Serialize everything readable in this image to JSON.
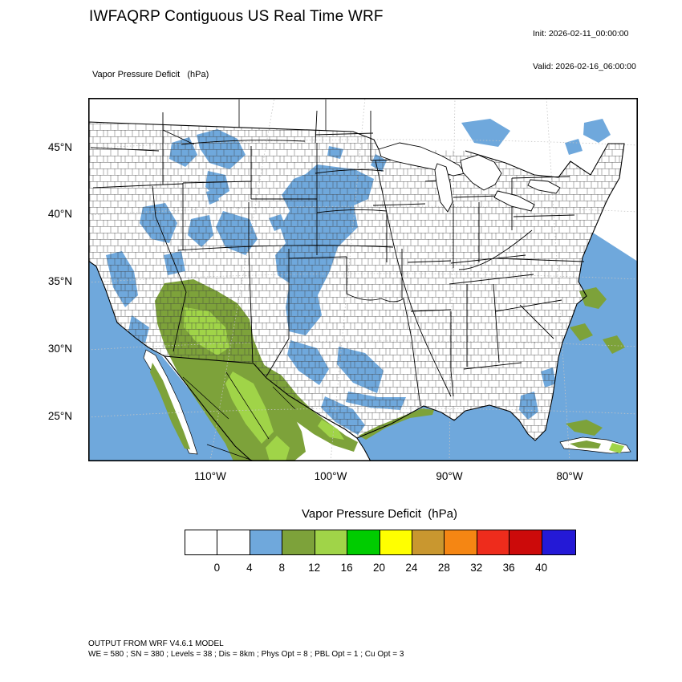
{
  "palette": {
    "map_blue": "#6fa8dc",
    "olive_green": "#7da23a",
    "bright_green": "#a0d448",
    "land_white": "#ffffff",
    "boundary_black": "#000000"
  },
  "header": {
    "title": "IWFAQRP Contiguous US Real Time WRF",
    "init_label": "Init: 2026-02-11_00:00:00",
    "valid_label": "Valid: 2026-02-16_06:00:00"
  },
  "map": {
    "field_label": "Vapor Pressure Deficit   (hPa)",
    "y_ticks": [
      "45°N",
      "40°N",
      "35°N",
      "30°N",
      "25°N"
    ],
    "x_ticks": [
      "110°W",
      "100°W",
      "90°W",
      "80°W"
    ]
  },
  "legend": {
    "title": "Vapor Pressure Deficit  (hPa)",
    "tick_labels": [
      "0",
      "4",
      "8",
      "12",
      "16",
      "20",
      "24",
      "28",
      "32",
      "36",
      "40"
    ],
    "box_colors": [
      "#ffffff",
      "#ffffff",
      "#6fa8dc",
      "#7da23a",
      "#a0d448",
      "#00cc00",
      "#ffff00",
      "#c9972f",
      "#f58613",
      "#ee2c1c",
      "#cc0a0a",
      "#2419d6"
    ]
  },
  "footer": {
    "line1": "OUTPUT FROM WRF V4.6.1 MODEL",
    "line2": "WE = 580 ; SN = 380 ; Levels = 38 ; Dis = 8km ; Phys Opt = 8 ; PBL Opt = 1 ; Cu Opt = 3"
  },
  "chart_data": {
    "type": "heatmap",
    "title": "Vapor Pressure Deficit  (hPa)",
    "variable": "Vapor Pressure Deficit",
    "units": "hPa",
    "region": "Contiguous US",
    "levels": [
      0,
      4,
      8,
      12,
      16,
      20,
      24,
      28,
      32,
      36,
      40
    ],
    "level_colors": [
      "#ffffff",
      "#ffffff",
      "#6fa8dc",
      "#7da23a",
      "#a0d448",
      "#00cc00",
      "#ffff00",
      "#c9972f",
      "#f58613",
      "#ee2c1c",
      "#cc0a0a",
      "#2419d6"
    ],
    "x_axis_ticks": [
      "110°W",
      "100°W",
      "90°W",
      "80°W"
    ],
    "y_axis_ticks": [
      "45°N",
      "40°N",
      "35°N",
      "30°N",
      "25°N"
    ],
    "legend_position": "bottom",
    "observed_pattern": "Values 0-4 hPa (white) cover most of the eastern and central US; 4-8 hPa (blue) over the Pacific coast, Great Basin, northern and central Plains, west Texas, Gulf of Mexico and western Atlantic; 8-16 hPa (olive and yellow-green) over Arizona, Sonora and the Sierra Madre of northwest Mexico, the Rio Grande and south Texas coast, and patches near Cuba and off the southeast coast."
  }
}
